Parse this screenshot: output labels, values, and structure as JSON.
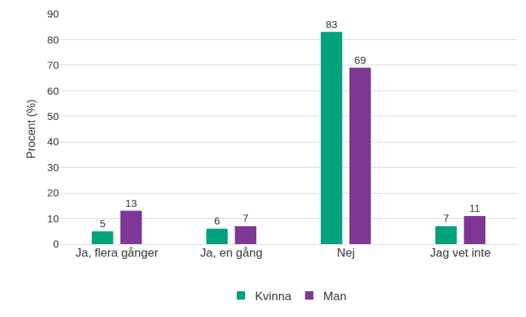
{
  "chart_data": {
    "type": "bar",
    "categories": [
      "Ja, flera gånger",
      "Ja, en gång",
      "Nej",
      "Jag vet inte"
    ],
    "series": [
      {
        "name": "Kvinna",
        "color": "#00a27d",
        "values": [
          5,
          6,
          83,
          7
        ]
      },
      {
        "name": "Man",
        "color": "#7e3794",
        "values": [
          13,
          7,
          69,
          11
        ]
      }
    ],
    "y_label": "Procent (%)",
    "ylim": [
      0,
      90
    ],
    "yticks": [
      0,
      10,
      20,
      30,
      40,
      50,
      60,
      70,
      80,
      90
    ],
    "grid": true,
    "legend": "bottom",
    "data_labels": true
  }
}
